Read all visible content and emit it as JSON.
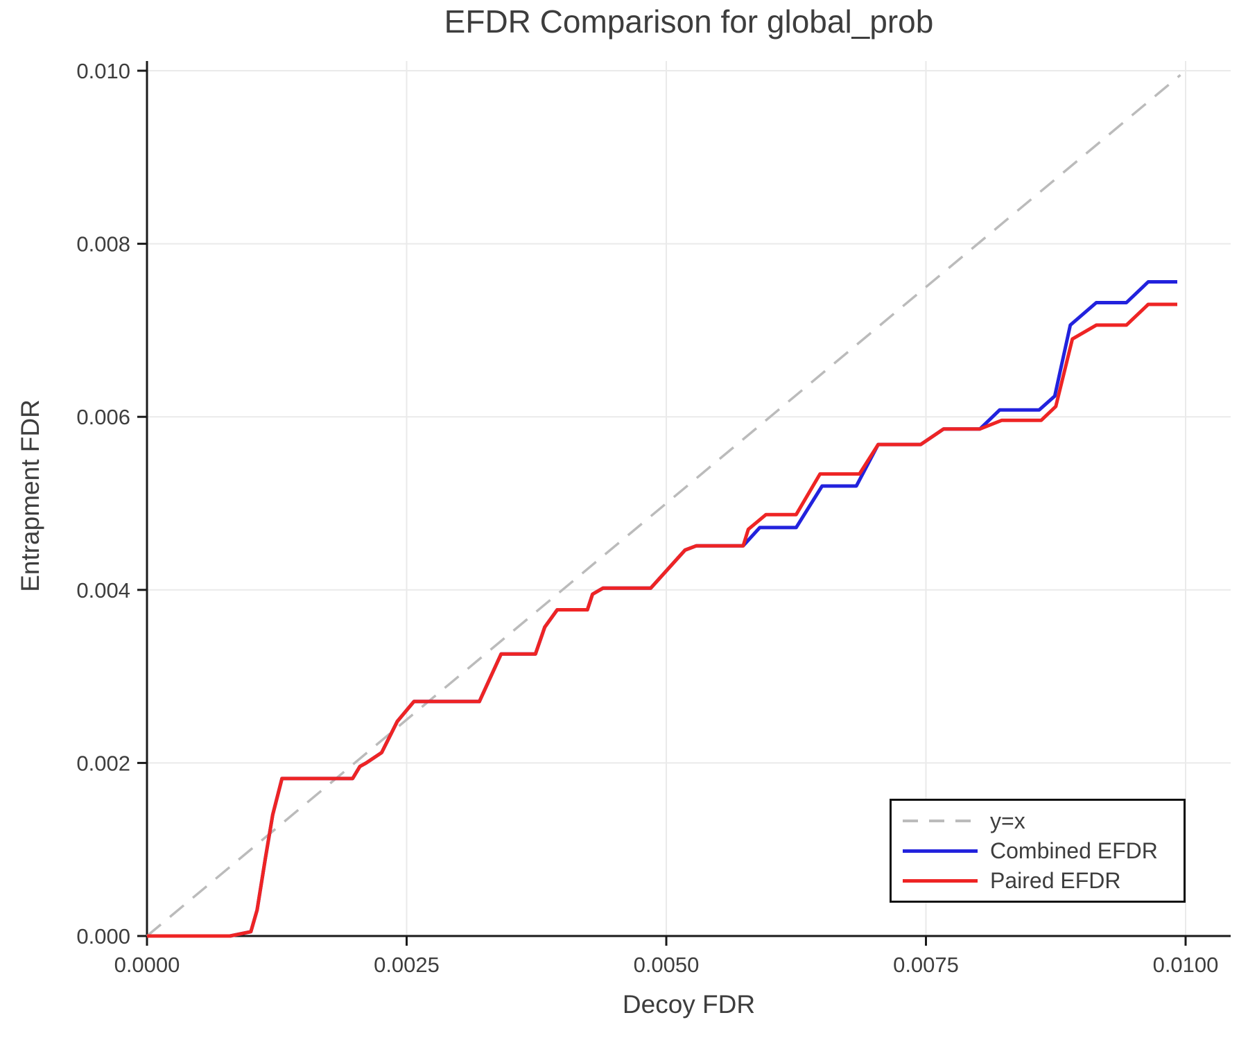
{
  "chart_data": {
    "type": "line",
    "title": "EFDR Comparison for global_prob",
    "xlabel": "Decoy FDR",
    "ylabel": "Entrapment FDR",
    "xlim": [
      0,
      0.01043
    ],
    "ylim": [
      0,
      0.01011
    ],
    "grid": true,
    "legend": {
      "position": "lower right"
    },
    "x_ticks": {
      "values": [
        0.0,
        0.0025,
        0.005,
        0.0075,
        0.01
      ],
      "labels": [
        "0.0000",
        "0.0025",
        "0.0050",
        "0.0075",
        "0.0100"
      ]
    },
    "y_ticks": {
      "values": [
        0.0,
        0.002,
        0.004,
        0.006,
        0.008,
        0.01
      ],
      "labels": [
        "0.000",
        "0.002",
        "0.004",
        "0.006",
        "0.008",
        "0.010"
      ]
    },
    "colors": {
      "grid": "#eaeaea",
      "axis": "#1a1a1a",
      "text": "#3d3d3d",
      "reference": "#bbbbbb",
      "combined": "#2222dd",
      "paired": "#ee2424"
    },
    "series": [
      {
        "name": "y=x",
        "style": "dashed",
        "color": "#bbbbbb",
        "points": [
          [
            0.0,
            0.0
          ],
          [
            0.00995,
            0.00995
          ]
        ]
      },
      {
        "name": "Combined EFDR",
        "style": "solid",
        "color": "#2222dd",
        "points": [
          [
            0.0,
            0.0
          ],
          [
            0.0008,
            0.0
          ],
          [
            0.001,
            5e-05
          ],
          [
            0.00106,
            0.0003
          ],
          [
            0.00114,
            0.0009
          ],
          [
            0.00121,
            0.0014
          ],
          [
            0.0013,
            0.00182
          ],
          [
            0.00198,
            0.00182
          ],
          [
            0.00205,
            0.00196
          ],
          [
            0.00211,
            0.002
          ],
          [
            0.00226,
            0.00212
          ],
          [
            0.00241,
            0.00248
          ],
          [
            0.00257,
            0.00271
          ],
          [
            0.0032,
            0.00271
          ],
          [
            0.00341,
            0.00326
          ],
          [
            0.00374,
            0.00326
          ],
          [
            0.00383,
            0.00357
          ],
          [
            0.00395,
            0.00377
          ],
          [
            0.00424,
            0.00377
          ],
          [
            0.00429,
            0.00395
          ],
          [
            0.00439,
            0.00402
          ],
          [
            0.00485,
            0.00402
          ],
          [
            0.00518,
            0.00446
          ],
          [
            0.00529,
            0.00451
          ],
          [
            0.00574,
            0.00451
          ],
          [
            0.0059,
            0.00472
          ],
          [
            0.00625,
            0.00472
          ],
          [
            0.0065,
            0.0052
          ],
          [
            0.00683,
            0.0052
          ],
          [
            0.00704,
            0.00568
          ],
          [
            0.00745,
            0.00568
          ],
          [
            0.00767,
            0.00586
          ],
          [
            0.00802,
            0.00586
          ],
          [
            0.00821,
            0.00608
          ],
          [
            0.00859,
            0.00608
          ],
          [
            0.00874,
            0.00624
          ],
          [
            0.00889,
            0.00706
          ],
          [
            0.00914,
            0.00732
          ],
          [
            0.00943,
            0.00732
          ],
          [
            0.00964,
            0.00756
          ],
          [
            0.00992,
            0.00756
          ]
        ]
      },
      {
        "name": "Paired EFDR",
        "style": "solid",
        "color": "#ee2424",
        "points": [
          [
            0.0,
            0.0
          ],
          [
            0.0008,
            0.0
          ],
          [
            0.001,
            5e-05
          ],
          [
            0.00106,
            0.0003
          ],
          [
            0.00114,
            0.0009
          ],
          [
            0.00121,
            0.0014
          ],
          [
            0.0013,
            0.00182
          ],
          [
            0.00198,
            0.00182
          ],
          [
            0.00205,
            0.00196
          ],
          [
            0.00211,
            0.002
          ],
          [
            0.00226,
            0.00212
          ],
          [
            0.00241,
            0.00248
          ],
          [
            0.00257,
            0.00271
          ],
          [
            0.0032,
            0.00271
          ],
          [
            0.00341,
            0.00326
          ],
          [
            0.00374,
            0.00326
          ],
          [
            0.00383,
            0.00357
          ],
          [
            0.00395,
            0.00377
          ],
          [
            0.00424,
            0.00377
          ],
          [
            0.00429,
            0.00395
          ],
          [
            0.00439,
            0.00402
          ],
          [
            0.00485,
            0.00402
          ],
          [
            0.00518,
            0.00446
          ],
          [
            0.00529,
            0.00451
          ],
          [
            0.00574,
            0.00451
          ],
          [
            0.00579,
            0.0047
          ],
          [
            0.00596,
            0.00487
          ],
          [
            0.00625,
            0.00487
          ],
          [
            0.00648,
            0.00534
          ],
          [
            0.00686,
            0.00534
          ],
          [
            0.00704,
            0.00568
          ],
          [
            0.00745,
            0.00568
          ],
          [
            0.00767,
            0.00586
          ],
          [
            0.00802,
            0.00586
          ],
          [
            0.00823,
            0.00596
          ],
          [
            0.00861,
            0.00596
          ],
          [
            0.00875,
            0.00612
          ],
          [
            0.00891,
            0.0069
          ],
          [
            0.00914,
            0.00706
          ],
          [
            0.00943,
            0.00706
          ],
          [
            0.00964,
            0.0073
          ],
          [
            0.00992,
            0.0073
          ]
        ]
      }
    ]
  }
}
